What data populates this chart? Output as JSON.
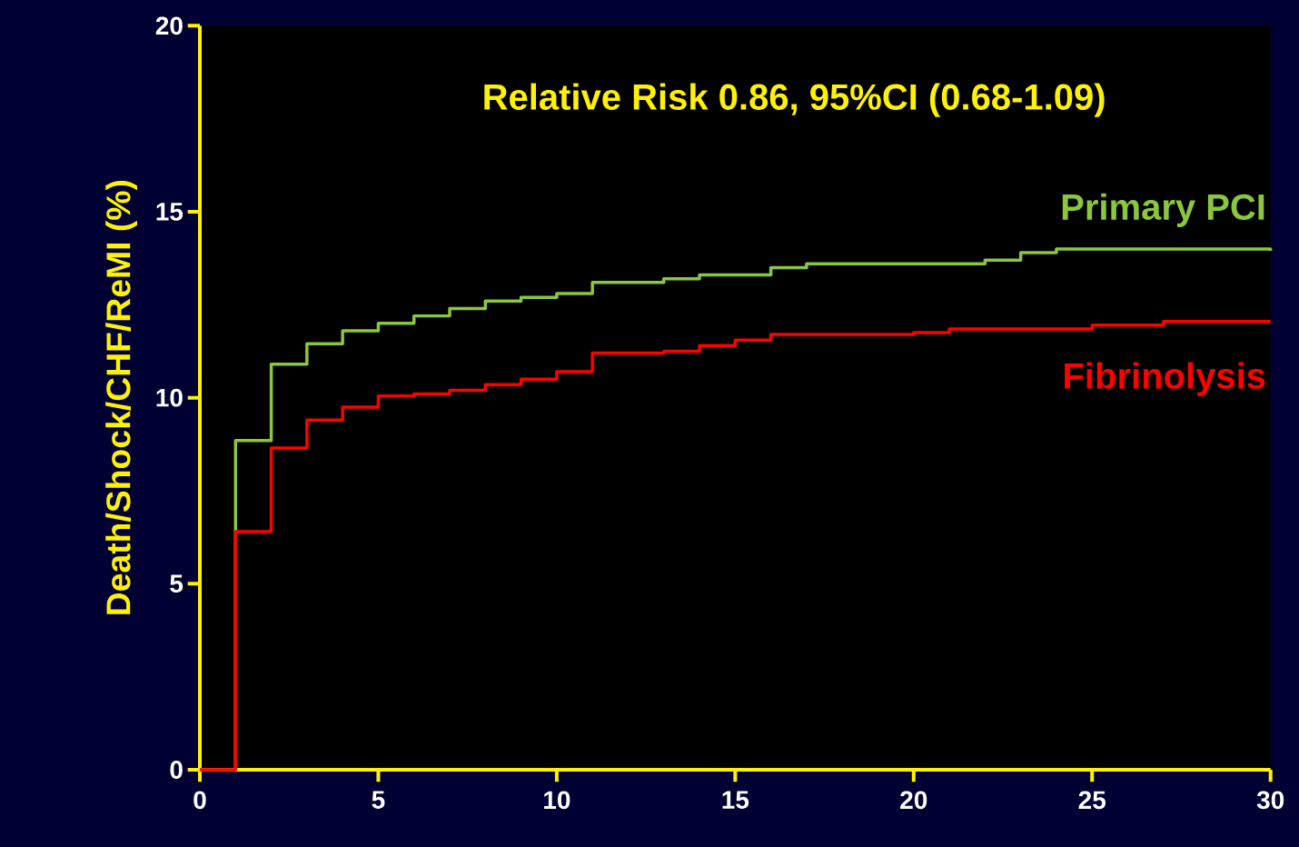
{
  "chart_data": {
    "type": "step",
    "ylabel": "Death/Shock/CHF/ReMI (%)",
    "annotations": [
      "Relative Risk 0.86, 95%CI (0.68-1.09)"
    ],
    "xlim": [
      0,
      30
    ],
    "xticks": [
      0,
      5,
      10,
      15,
      20,
      25,
      30
    ],
    "ylim": [
      0,
      20
    ],
    "yticks": [
      0,
      5,
      10,
      15,
      20
    ],
    "grid": false,
    "legend": false,
    "series": [
      {
        "name": "Primary PCI",
        "color": "#8cc63f",
        "x": [
          0,
          1,
          2,
          3,
          4,
          5,
          6,
          7,
          8,
          9,
          10,
          11,
          13,
          14,
          16,
          17,
          22,
          23,
          24,
          30
        ],
        "values": [
          0,
          8.85,
          10.9,
          11.45,
          11.8,
          12.0,
          12.2,
          12.4,
          12.6,
          12.7,
          12.8,
          13.1,
          13.2,
          13.3,
          13.5,
          13.6,
          13.7,
          13.9,
          14.0,
          13.95
        ]
      },
      {
        "name": "Fibrinolysis",
        "color": "#ff0000",
        "x": [
          0,
          1,
          2,
          3,
          4,
          5,
          6,
          7,
          8,
          9,
          10,
          11,
          13,
          14,
          15,
          16,
          20,
          21,
          25,
          27,
          30
        ],
        "values": [
          0,
          6.4,
          8.65,
          9.4,
          9.75,
          10.05,
          10.1,
          10.2,
          10.35,
          10.5,
          10.7,
          11.2,
          11.25,
          11.4,
          11.55,
          11.7,
          11.75,
          11.85,
          11.95,
          12.05,
          12.05
        ]
      }
    ]
  }
}
